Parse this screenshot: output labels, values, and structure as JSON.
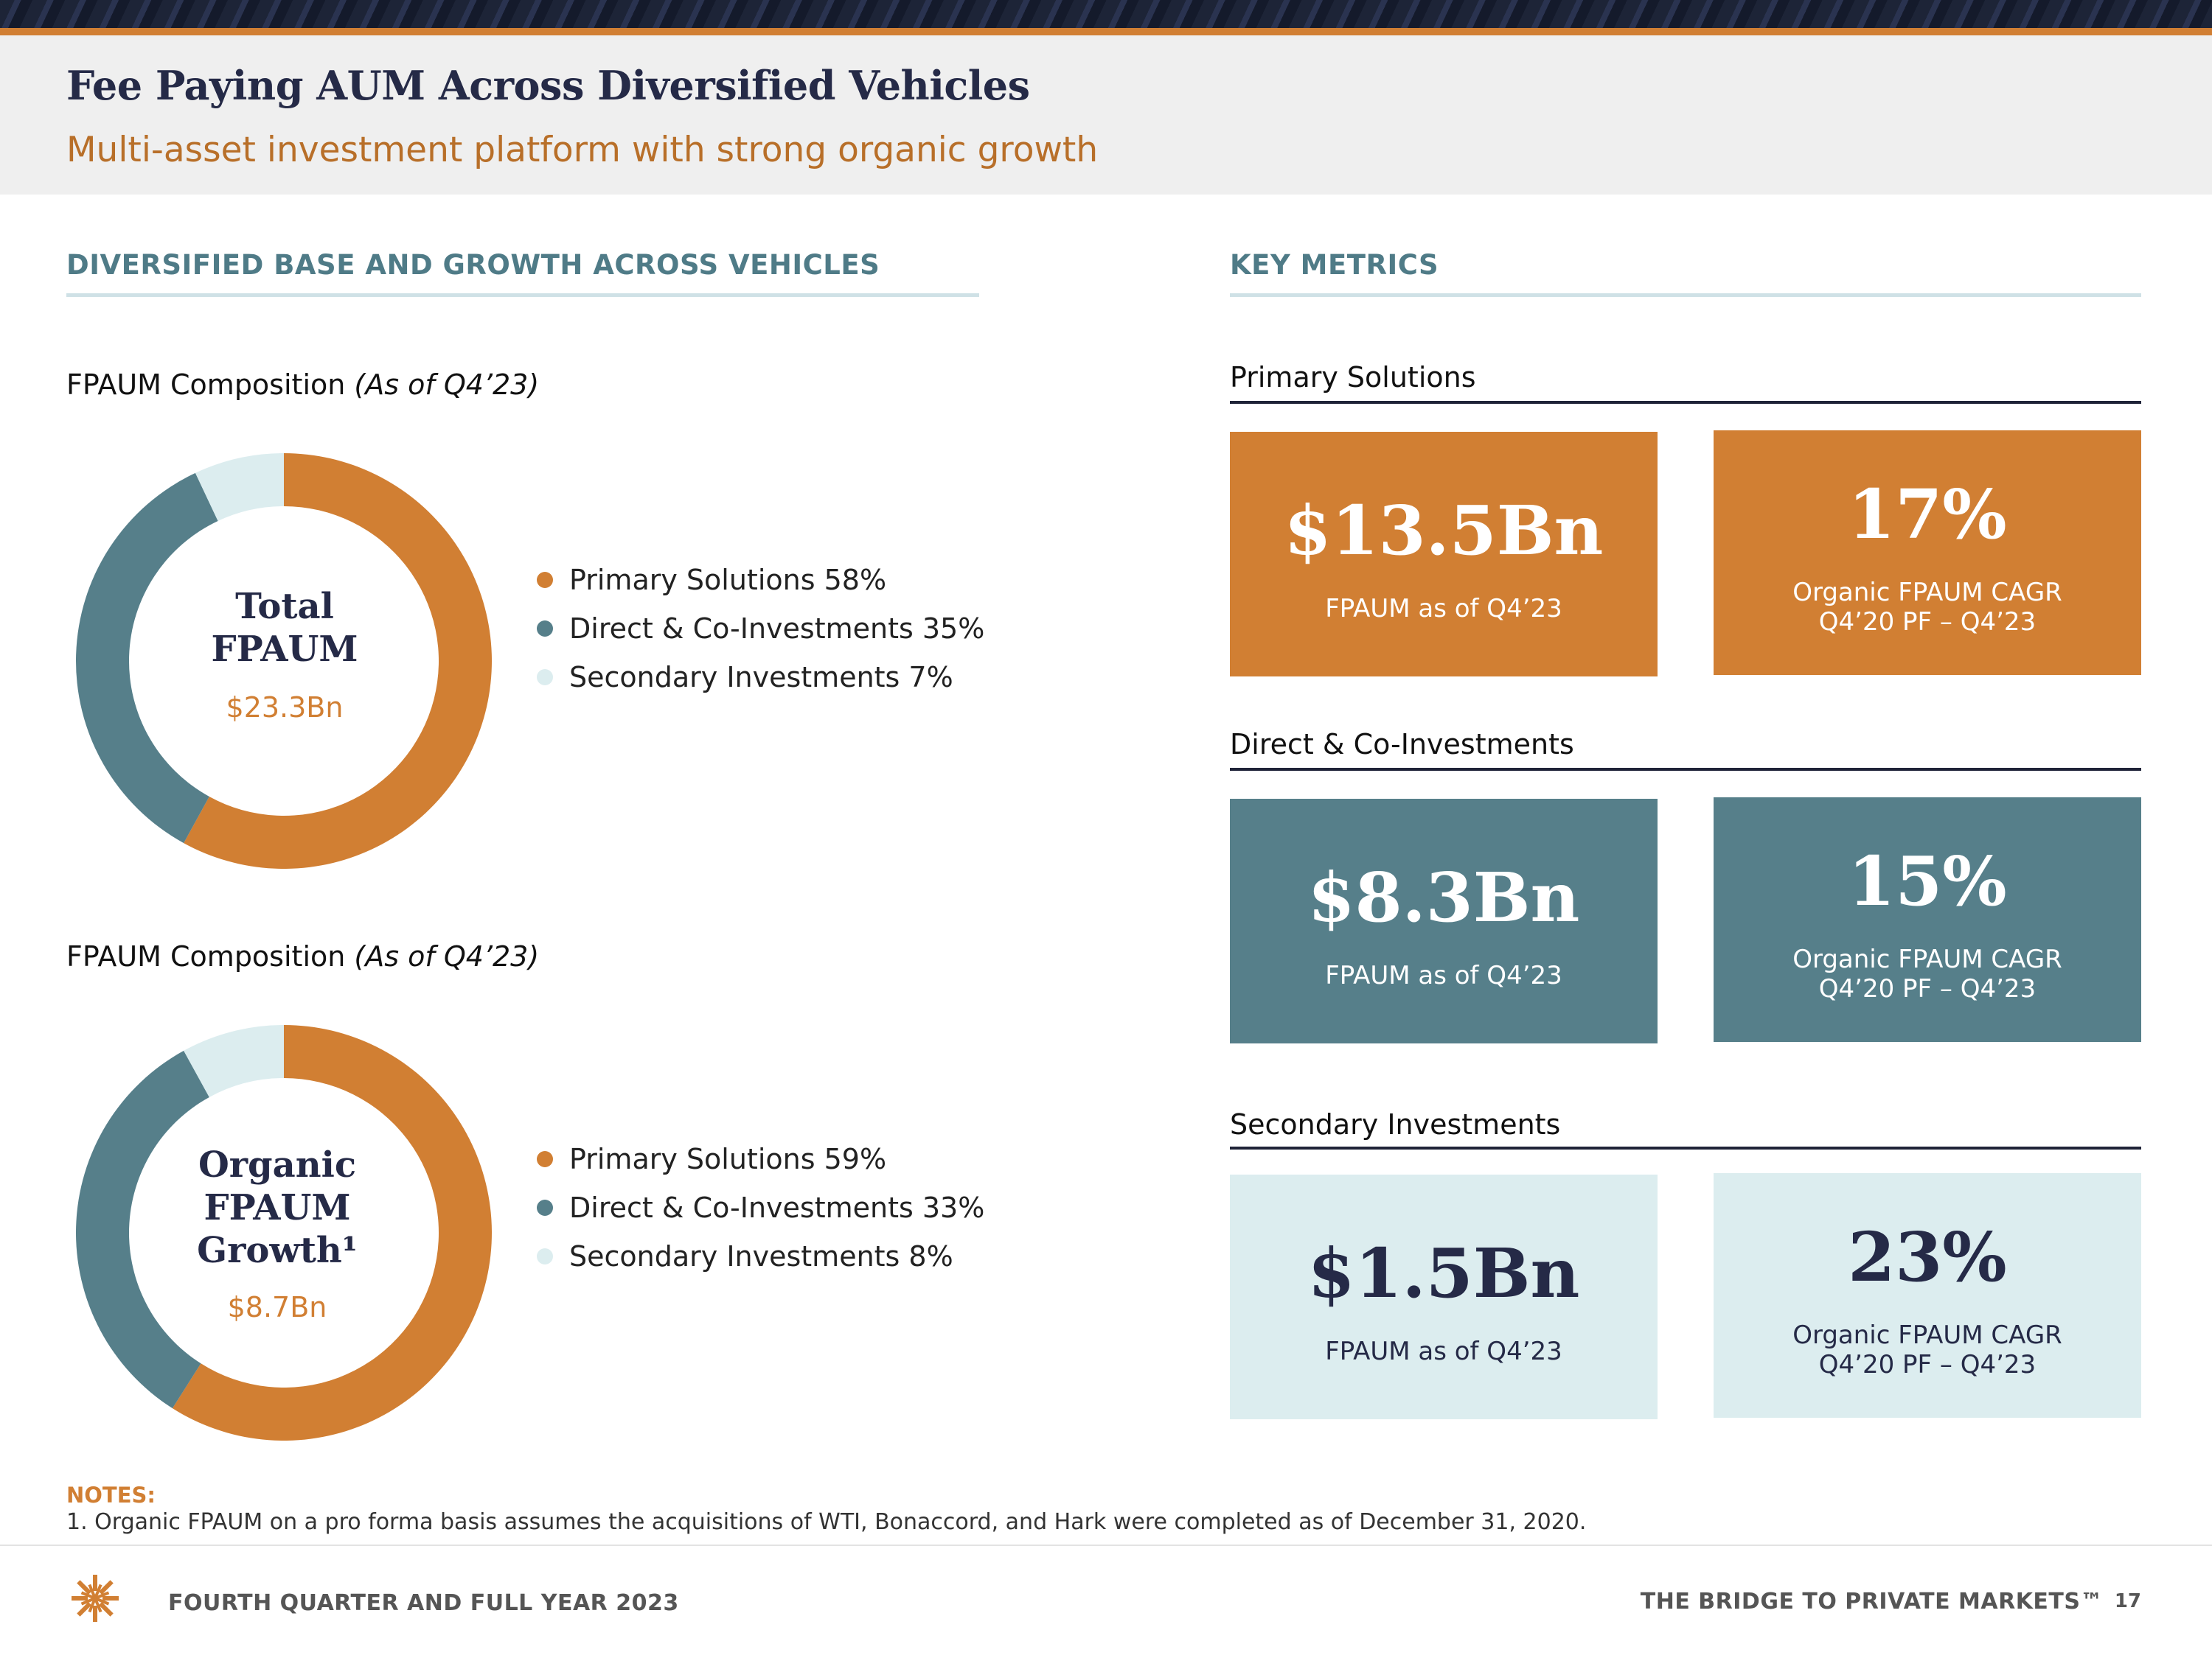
{
  "header": {
    "title": "Fee Paying AUM Across Diversified Vehicles",
    "subtitle": "Multi-asset investment platform with strong organic growth"
  },
  "sections": {
    "left_head": "DIVERSIFIED BASE AND GROWTH ACROSS VEHICLES",
    "right_head": "KEY METRICS"
  },
  "colors": {
    "primary": "#d17f33",
    "direct": "#567f8a",
    "secondary": "#dcedef",
    "navy": "#252a47"
  },
  "composition_label": {
    "text": "FPAUM Composition ",
    "italic": "(As of Q4’23)"
  },
  "donut_1": {
    "center_label": [
      "Total",
      "FPAUM"
    ],
    "center_value": "$23.3Bn"
  },
  "donut_2": {
    "center_label": [
      "Organic",
      "FPAUM",
      "Growth¹"
    ],
    "center_value": "$8.7Bn"
  },
  "chart_data": [
    {
      "type": "pie",
      "categories": [
        "Primary Solutions",
        "Direct & Co-Investments",
        "Secondary Investments"
      ],
      "values": [
        58,
        35,
        7
      ],
      "legend": [
        "Primary Solutions 58%",
        "Direct & Co-Investments 35%",
        "Secondary Investments 7%"
      ],
      "title": "FPAUM Composition (As of Q4’23)"
    },
    {
      "type": "pie",
      "categories": [
        "Primary Solutions",
        "Direct & Co-Investments",
        "Secondary Investments"
      ],
      "values": [
        59,
        33,
        8
      ],
      "legend": [
        "Primary Solutions 59%",
        "Direct & Co-Investments 33%",
        "Secondary Investments 8%"
      ],
      "title": "FPAUM Composition (As of Q4’23)"
    }
  ],
  "metrics": {
    "primary": {
      "group": "Primary Solutions",
      "fpaum": "$13.5Bn",
      "fpaum_caption": "FPAUM as of Q4’23",
      "cagr": "17%",
      "cagr_caption_1": "Organic FPAUM CAGR",
      "cagr_caption_2": "Q4’20 PF – Q4’23"
    },
    "direct": {
      "group": "Direct & Co-Investments",
      "fpaum": "$8.3Bn",
      "fpaum_caption": "FPAUM as of Q4’23",
      "cagr": "15%",
      "cagr_caption_1": "Organic FPAUM CAGR",
      "cagr_caption_2": "Q4’20 PF – Q4’23"
    },
    "secondary": {
      "group": "Secondary Investments",
      "fpaum": "$1.5Bn",
      "fpaum_caption": "FPAUM as of Q4’23",
      "cagr": "23%",
      "cagr_caption_1": "Organic FPAUM CAGR",
      "cagr_caption_2": "Q4’20 PF – Q4’23"
    }
  },
  "notes": {
    "head": "NOTES:",
    "items": [
      "1. Organic FPAUM on a pro forma basis assumes the acquisitions of WTI, Bonaccord, and Hark were completed as of December 31, 2020."
    ]
  },
  "footer": {
    "left": "FOURTH QUARTER AND FULL YEAR 2023",
    "right": "THE BRIDGE TO PRIVATE MARKETS™",
    "page": "17"
  }
}
